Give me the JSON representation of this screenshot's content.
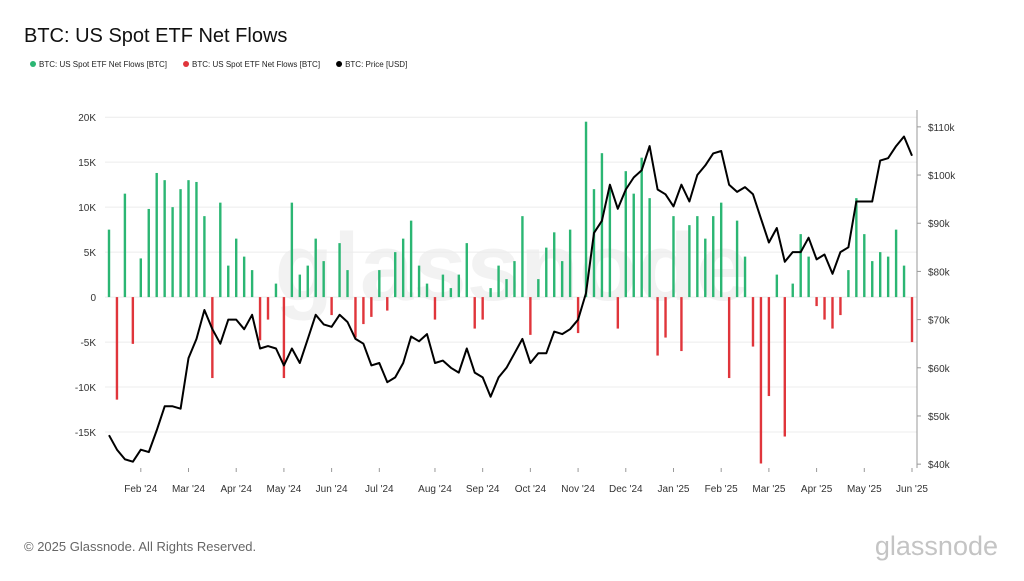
{
  "chart_data": {
    "type": "bar-line",
    "title": "BTC: US Spot ETF Net Flows",
    "watermark": "glassnode",
    "copyright": "© 2025 Glassnode. All Rights Reserved.",
    "logo": "glassnode",
    "categories": [
      null,
      null,
      null,
      null,
      "Feb '24",
      null,
      null,
      null,
      null,
      null,
      "Mar '24",
      null,
      null,
      null,
      null,
      null,
      "Apr '24",
      null,
      null,
      null,
      null,
      null,
      "May '24",
      null,
      null,
      null,
      null,
      null,
      "Jun '24",
      null,
      null,
      null,
      null,
      null,
      "Jul '24",
      null,
      null,
      null,
      null,
      null,
      null,
      "Aug '24",
      null,
      null,
      null,
      null,
      null,
      "Sep '24",
      null,
      null,
      null,
      null,
      null,
      "Oct '24",
      null,
      null,
      null,
      null,
      null,
      "Nov '24",
      null,
      null,
      null,
      null,
      null,
      "Dec '24",
      null,
      null,
      null,
      null,
      null,
      "Jan '25",
      null,
      null,
      null,
      null,
      null,
      "Feb '25",
      null,
      null,
      null,
      null,
      null,
      "Mar '25",
      null,
      null,
      null,
      null,
      null,
      "Apr '25",
      null,
      null,
      null,
      null,
      null,
      "May '25",
      null,
      null,
      null,
      null,
      null,
      "Jun '25"
    ],
    "series": [
      {
        "name": "BTC: US Spot ETF Net Flows [BTC]",
        "color": "#2bb673",
        "values": [
          7500,
          null,
          11500,
          null,
          4300,
          9800,
          13800,
          13000,
          10000,
          12000,
          13000,
          12800,
          9000,
          null,
          10500,
          3500,
          6500,
          4500,
          3000,
          null,
          null,
          1500,
          null,
          10500,
          2500,
          3500,
          6500,
          4000,
          null,
          6000,
          3000,
          null,
          null,
          null,
          3000,
          null,
          5000,
          6500,
          8500,
          3500,
          1500,
          null,
          2500,
          1000,
          2500,
          6000,
          null,
          null,
          1000,
          3500,
          2000,
          4000,
          9000,
          null,
          2000,
          5500,
          7200,
          4000,
          7500,
          null,
          19500,
          12000,
          16000,
          12000,
          null,
          14000,
          11500,
          15500,
          11000,
          null,
          null,
          9000,
          null,
          8000,
          9000,
          6500,
          9000,
          10500,
          null,
          8500,
          4500,
          null,
          null,
          null,
          2500,
          null,
          1500,
          7000,
          4500,
          null,
          null,
          null,
          null,
          3000,
          11000,
          7000,
          4000,
          5000,
          4500,
          7500,
          3500,
          null
        ]
      },
      {
        "name": "BTC: US Spot ETF Net Flows [BTC]",
        "color": "#e0353b",
        "values": [
          null,
          -11400,
          null,
          -5200,
          null,
          null,
          null,
          null,
          null,
          null,
          null,
          null,
          null,
          -9000,
          null,
          null,
          null,
          null,
          null,
          -4800,
          -2500,
          null,
          -9000,
          null,
          null,
          null,
          null,
          null,
          -2000,
          null,
          null,
          -4500,
          -3000,
          -2200,
          null,
          -1500,
          null,
          null,
          null,
          null,
          null,
          -2500,
          null,
          null,
          null,
          null,
          -3500,
          -2500,
          null,
          null,
          null,
          null,
          null,
          -4200,
          null,
          null,
          null,
          null,
          null,
          -4000,
          null,
          null,
          null,
          null,
          -3500,
          null,
          null,
          null,
          null,
          -6500,
          -4500,
          null,
          -6000,
          null,
          null,
          null,
          null,
          null,
          -9000,
          null,
          null,
          -5500,
          -18500,
          -11000,
          null,
          -15500,
          null,
          null,
          null,
          -1000,
          -2500,
          -3500,
          -2000,
          null,
          null,
          null,
          null,
          null,
          null,
          null,
          null,
          -5000
        ]
      },
      {
        "name": "BTC: Price [USD]",
        "color": "#000000",
        "axis": "y2",
        "values": [
          46000,
          43000,
          41000,
          40500,
          43000,
          42500,
          47000,
          52000,
          52000,
          51500,
          62000,
          66000,
          72000,
          68000,
          65000,
          70000,
          70000,
          68000,
          71000,
          64000,
          64500,
          64000,
          60500,
          64000,
          61000,
          66000,
          71000,
          69000,
          68500,
          71000,
          69500,
          66000,
          65000,
          60500,
          61000,
          57000,
          58000,
          61000,
          66500,
          65500,
          67000,
          61000,
          61500,
          60000,
          59000,
          64000,
          59000,
          58000,
          54000,
          58000,
          60000,
          63000,
          66000,
          61000,
          63000,
          63000,
          67500,
          67000,
          68000,
          70000,
          75500,
          88000,
          90500,
          98000,
          93000,
          97000,
          99500,
          101000,
          106000,
          97000,
          96000,
          93500,
          98000,
          94500,
          100000,
          102000,
          104500,
          105000,
          98000,
          96500,
          97500,
          96000,
          91000,
          86000,
          89000,
          82000,
          84000,
          84000,
          87000,
          82500,
          83500,
          79500,
          84000,
          85000,
          94500,
          94500,
          94500,
          103000,
          103500,
          106000,
          108000,
          104000
        ]
      }
    ],
    "ylim": [
      -19000,
      20800
    ],
    "yticks": [
      {
        "value": -15000,
        "label": "-15K"
      },
      {
        "value": -10000,
        "label": "-10K"
      },
      {
        "value": -5000,
        "label": "-5K"
      },
      0,
      {
        "value": 5000,
        "label": "5K"
      },
      {
        "value": 10000,
        "label": "10K"
      },
      {
        "value": 15000,
        "label": "15K"
      },
      {
        "value": 20000,
        "label": "20K"
      }
    ],
    "y2lim": [
      39200,
      113500
    ],
    "y2ticks": [
      {
        "value": 40000,
        "label": "$40k"
      },
      {
        "value": 50000,
        "label": "$50k"
      },
      {
        "value": 60000,
        "label": "$60k"
      },
      {
        "value": 70000,
        "label": "$70k"
      },
      {
        "value": 80000,
        "label": "$80k"
      },
      {
        "value": 90000,
        "label": "$90k"
      },
      {
        "value": 100000,
        "label": "$100k"
      },
      {
        "value": 110000,
        "label": "$110k"
      }
    ],
    "grid": true
  }
}
